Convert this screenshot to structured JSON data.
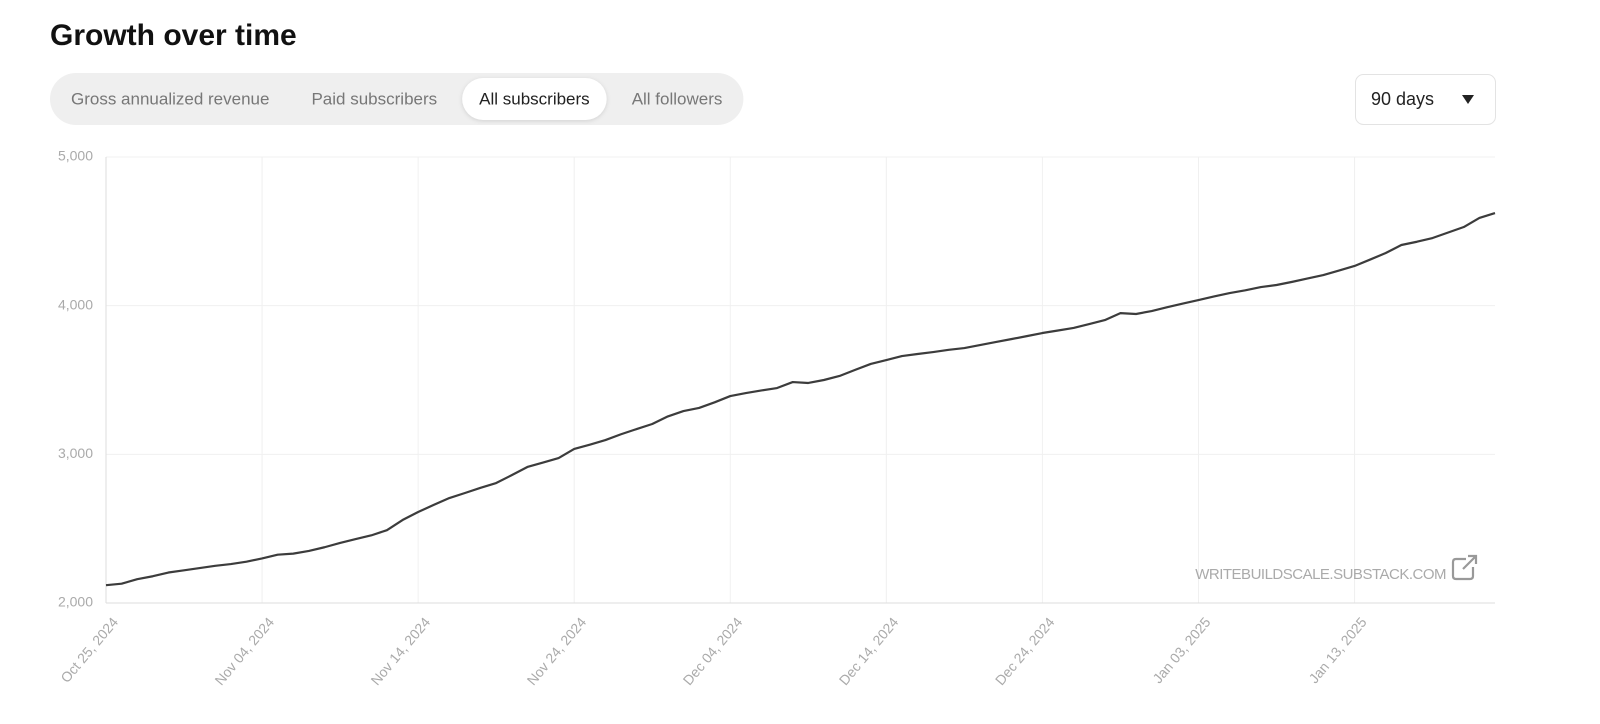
{
  "header": {
    "title": "Growth over time"
  },
  "tabs": [
    {
      "label": "Gross annualized revenue",
      "selected": false
    },
    {
      "label": "Paid subscribers",
      "selected": false
    },
    {
      "label": "All subscribers",
      "selected": true
    },
    {
      "label": "All followers",
      "selected": false
    }
  ],
  "period_select": {
    "label": "90 days"
  },
  "watermark": "WRITEBUILDSCALE.SUBSTACK.COM",
  "chart_data": {
    "type": "line",
    "color": "#3c3c3c",
    "grid": true,
    "x": [
      "2024-10-25",
      "2024-10-26",
      "2024-10-27",
      "2024-10-28",
      "2024-10-29",
      "2024-10-30",
      "2024-10-31",
      "2024-11-01",
      "2024-11-02",
      "2024-11-03",
      "2024-11-04",
      "2024-11-05",
      "2024-11-06",
      "2024-11-07",
      "2024-11-08",
      "2024-11-09",
      "2024-11-10",
      "2024-11-11",
      "2024-11-12",
      "2024-11-13",
      "2024-11-14",
      "2024-11-15",
      "2024-11-16",
      "2024-11-17",
      "2024-11-18",
      "2024-11-19",
      "2024-11-20",
      "2024-11-21",
      "2024-11-22",
      "2024-11-23",
      "2024-11-24",
      "2024-11-25",
      "2024-11-26",
      "2024-11-27",
      "2024-11-28",
      "2024-11-29",
      "2024-11-30",
      "2024-12-01",
      "2024-12-02",
      "2024-12-03",
      "2024-12-04",
      "2024-12-05",
      "2024-12-06",
      "2024-12-07",
      "2024-12-08",
      "2024-12-09",
      "2024-12-10",
      "2024-12-11",
      "2024-12-12",
      "2024-12-13",
      "2024-12-14",
      "2024-12-15",
      "2024-12-16",
      "2024-12-17",
      "2024-12-18",
      "2024-12-19",
      "2024-12-20",
      "2024-12-21",
      "2024-12-22",
      "2024-12-23",
      "2024-12-24",
      "2024-12-25",
      "2024-12-26",
      "2024-12-27",
      "2024-12-28",
      "2024-12-29",
      "2024-12-30",
      "2024-12-31",
      "2025-01-01",
      "2025-01-02",
      "2025-01-03",
      "2025-01-04",
      "2025-01-05",
      "2025-01-06",
      "2025-01-07",
      "2025-01-08",
      "2025-01-09",
      "2025-01-10",
      "2025-01-11",
      "2025-01-12",
      "2025-01-13",
      "2025-01-14",
      "2025-01-15",
      "2025-01-16",
      "2025-01-17",
      "2025-01-18",
      "2025-01-19",
      "2025-01-20",
      "2025-01-21",
      "2025-01-22"
    ],
    "values": [
      2120,
      2130,
      2160,
      2180,
      2205,
      2220,
      2235,
      2250,
      2262,
      2278,
      2300,
      2325,
      2332,
      2350,
      2375,
      2404,
      2430,
      2455,
      2490,
      2558,
      2612,
      2660,
      2706,
      2740,
      2775,
      2807,
      2860,
      2915,
      2945,
      2975,
      3036,
      3065,
      3096,
      3135,
      3170,
      3204,
      3255,
      3291,
      3312,
      3350,
      3392,
      3412,
      3430,
      3446,
      3486,
      3480,
      3500,
      3527,
      3568,
      3608,
      3634,
      3661,
      3675,
      3688,
      3703,
      3715,
      3735,
      3755,
      3775,
      3795,
      3816,
      3833,
      3850,
      3876,
      3903,
      3950,
      3944,
      3964,
      3990,
      4014,
      4038,
      4062,
      4085,
      4103,
      4125,
      4139,
      4160,
      4183,
      4206,
      4236,
      4267,
      4310,
      4354,
      4408,
      4430,
      4455,
      4492,
      4529,
      4590,
      4623
    ],
    "xlim": [
      "2024-10-25",
      "2025-01-22"
    ],
    "xticks": [
      {
        "value": "2024-10-25",
        "label": "Oct 25, 2024"
      },
      {
        "value": "2024-11-04",
        "label": "Nov 04, 2024"
      },
      {
        "value": "2024-11-14",
        "label": "Nov 14, 2024"
      },
      {
        "value": "2024-11-24",
        "label": "Nov 24, 2024"
      },
      {
        "value": "2024-12-04",
        "label": "Dec 04, 2024"
      },
      {
        "value": "2024-12-14",
        "label": "Dec 14, 2024"
      },
      {
        "value": "2024-12-24",
        "label": "Dec 24, 2024"
      },
      {
        "value": "2025-01-03",
        "label": "Jan 03, 2025"
      },
      {
        "value": "2025-01-13",
        "label": "Jan 13, 2025"
      }
    ],
    "ylim": [
      2000,
      5000
    ],
    "yticks": [
      {
        "value": 2000,
        "label": "2,000"
      },
      {
        "value": 3000,
        "label": "3,000"
      },
      {
        "value": 4000,
        "label": "4,000"
      },
      {
        "value": 5000,
        "label": "5,000"
      }
    ]
  }
}
